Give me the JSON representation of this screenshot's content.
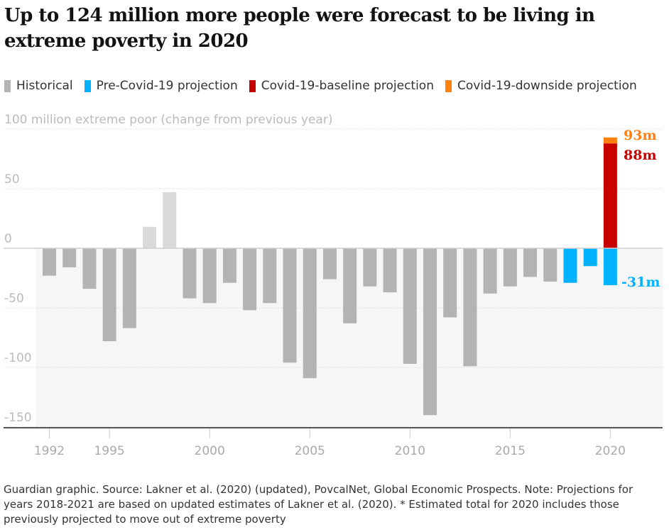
{
  "title": "Up to 124 million more people were forecast to be living in extreme poverty in 2020",
  "legend": [
    {
      "label": "Historical",
      "color": "#b3b3b3"
    },
    {
      "label": "Pre-Covid-19 projection",
      "color": "#00b2ff"
    },
    {
      "label": "Covid-19-baseline projection",
      "color": "#c70000"
    },
    {
      "label": "Covid-19-downside projection",
      "color": "#ff7f0f"
    }
  ],
  "source": "Guardian graphic. Source: Lakner et al. (2020) (updated), PovcalNet, Global Economic Prospects. Note: Projections for years 2018-2021 are based on updated estimates of Lakner et al. (2020). * Estimated total for 2020 includes those previously projected to move out of extreme poverty",
  "chart_data": {
    "type": "bar",
    "title": "Up to 124 million more people were forecast to be living in extreme poverty in 2020",
    "ylabel": "100 million extreme poor (change from previous year)",
    "ylim": [
      -155,
      100
    ],
    "yticks": [
      {
        "value": 100,
        "label": "100 million extreme poor (change from previous year)"
      },
      {
        "value": 50,
        "label": "50"
      },
      {
        "value": 0,
        "label": "0"
      },
      {
        "value": -50,
        "label": "-50"
      },
      {
        "value": -100,
        "label": "-100"
      },
      {
        "value": -150,
        "label": "-150"
      }
    ],
    "xticks": [
      "1992",
      "1995",
      "2000",
      "2005",
      "2010",
      "2015",
      "2020"
    ],
    "grid": true,
    "legend_position": "top",
    "faded_years": [
      1997,
      1998
    ],
    "series": [
      {
        "name": "Historical",
        "color": "#b3b3b3",
        "faded_color": "#d9d9d9",
        "x": [
          1992,
          1993,
          1994,
          1995,
          1996,
          1997,
          1998,
          1999,
          2000,
          2001,
          2002,
          2003,
          2004,
          2005,
          2006,
          2007,
          2008,
          2009,
          2010,
          2011,
          2012,
          2013,
          2014,
          2015,
          2016,
          2017
        ],
        "values": [
          -23,
          -16,
          -34,
          -78,
          -67,
          18,
          47,
          -42,
          -46,
          -29,
          -52,
          -46,
          -96,
          -109,
          -26,
          -63,
          -32,
          -37,
          -97,
          -140,
          -58,
          -99,
          -38,
          -32,
          -24,
          -28
        ]
      },
      {
        "name": "Pre-Covid-19 projection",
        "color": "#00b2ff",
        "x": [
          2018,
          2019,
          2020
        ],
        "values": [
          -29,
          -15,
          -31
        ]
      },
      {
        "name": "Covid-19-baseline projection",
        "color": "#c70000",
        "x": [
          2020
        ],
        "values": [
          88
        ]
      },
      {
        "name": "Covid-19-downside projection",
        "color": "#ff7f0f",
        "x": [
          2020
        ],
        "values": [
          93
        ]
      }
    ],
    "annotations": [
      {
        "label": "93m",
        "color": "#ff7f0f",
        "value": 93
      },
      {
        "label": "88m",
        "color": "#c70000",
        "value": 88
      },
      {
        "label": "-31m",
        "color": "#00b2ff",
        "value": -31
      }
    ]
  }
}
